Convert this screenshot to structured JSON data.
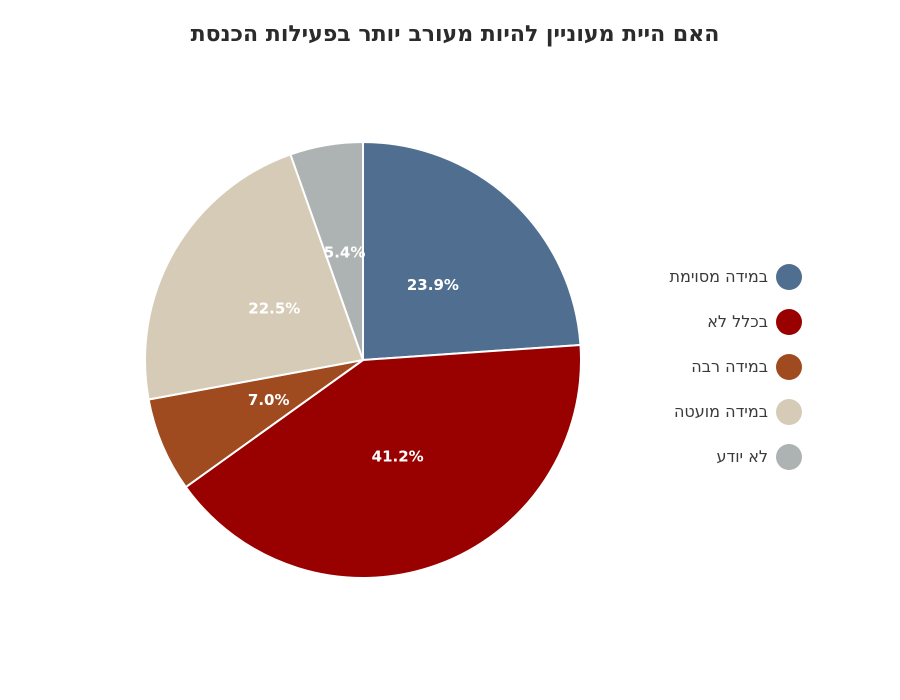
{
  "chart_data": {
    "type": "pie",
    "title": "האם היית מעוניין להיות מעורב יותר בפעילות הכנסת",
    "slices": [
      {
        "label": "במידה מסוימת",
        "value": 23.9,
        "value_label": "23.9%",
        "color": "#506f90"
      },
      {
        "label": "בכלל לא",
        "value": 41.2,
        "value_label": "41.2%",
        "color": "#990000"
      },
      {
        "label": "במידה רבה",
        "value": 7.0,
        "value_label": "7.0%",
        "color": "#a04b1f"
      },
      {
        "label": "במידה מועטה",
        "value": 22.5,
        "value_label": "22.5%",
        "color": "#d6cbb6"
      },
      {
        "label": "לא יודע",
        "value": 5.4,
        "value_label": "5.4%",
        "color": "#adb3b3"
      }
    ],
    "legend_position": "right"
  }
}
